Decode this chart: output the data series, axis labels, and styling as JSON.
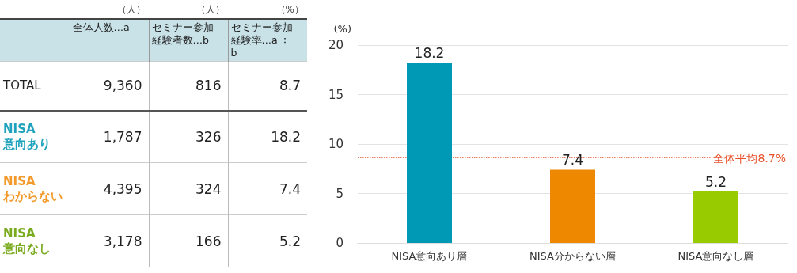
{
  "chart_data": [
    {
      "type": "other",
      "categories": [
        "全体人数…a",
        "セミナー参加経験者数…b",
        "セミナー参加経験率…a ÷ b"
      ],
      "annotations": [
        "（人）",
        "（人）",
        "（%）"
      ],
      "y_categories": [
        "TOTAL",
        "NISA意向あり",
        "NISAわからない",
        "NISA意向なし"
      ],
      "colors": [
        null,
        "#1fa3bd",
        "#f39a2c",
        "#7aab1e"
      ],
      "cell_labels": [
        [
          "9,360",
          "816",
          "8.7"
        ],
        [
          "1,787",
          "326",
          "18.2"
        ],
        [
          "4,395",
          "324",
          "7.4"
        ],
        [
          "3,178",
          "166",
          "5.2"
        ]
      ]
    },
    {
      "type": "bar",
      "ylabel": "(%)",
      "categories": [
        "NISA意向あり層",
        "NISA分からない層",
        "NISA意向なし層"
      ],
      "values": [
        18.2,
        7.4,
        5.2
      ],
      "colors": [
        "#0099b5",
        "#ee8800",
        "#99cc00"
      ],
      "ylim": [
        0,
        20
      ],
      "yticks": [
        0,
        5,
        10,
        15,
        20
      ],
      "grid": "y",
      "data_labels": true,
      "ref_lines": [
        {
          "axis": "y",
          "value": 8.7,
          "label": "全体平均8.7%",
          "color": "#e8502a",
          "line_style": "dotted"
        }
      ]
    }
  ]
}
